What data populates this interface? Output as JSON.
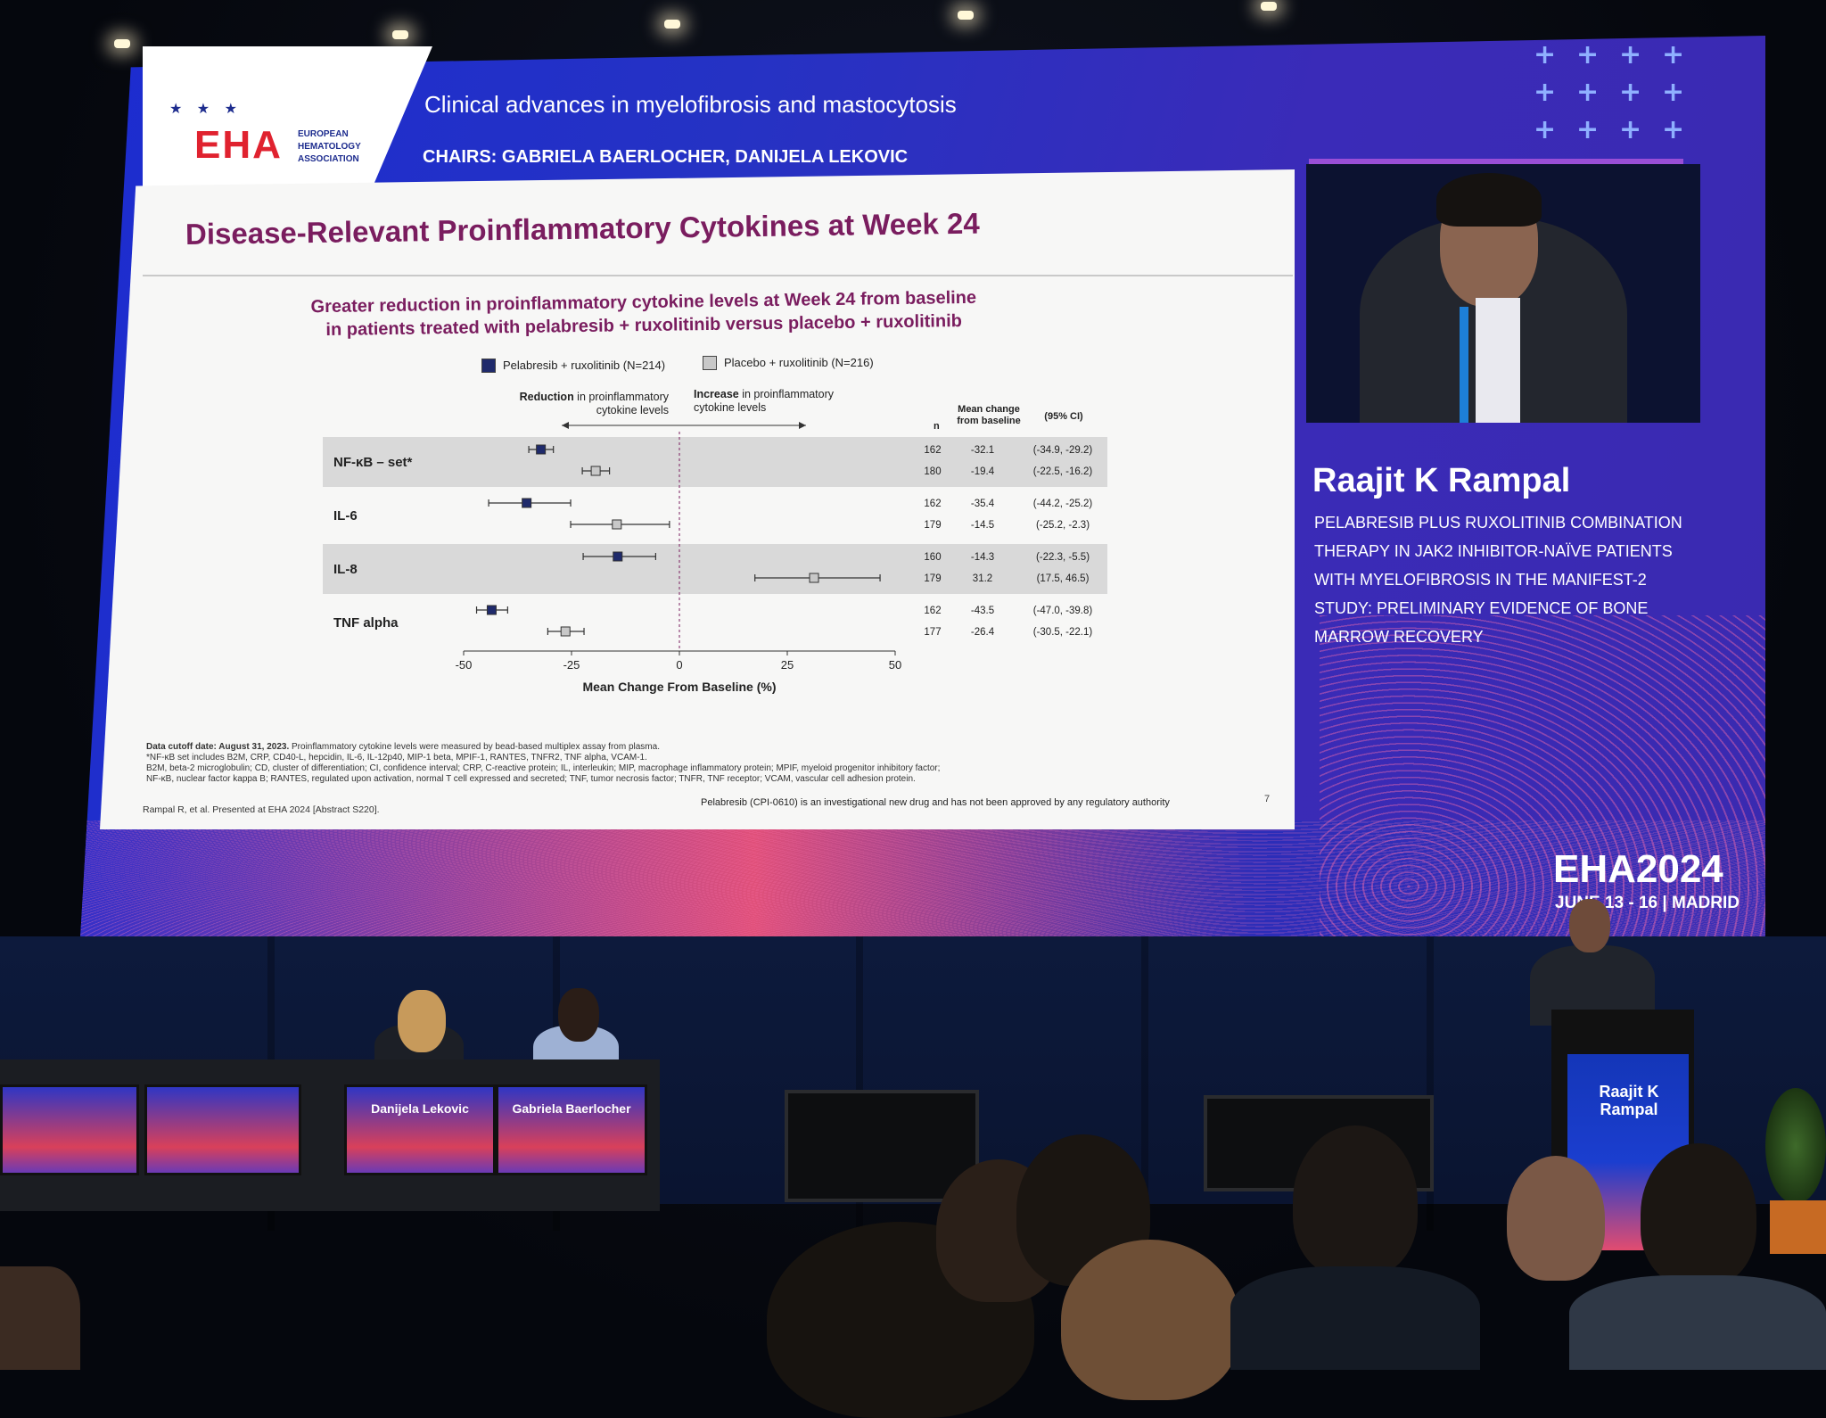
{
  "session": {
    "title": "Clinical advances in myelofibrosis and mastocytosis",
    "chairs": "CHAIRS: GABRIELA BAERLOCHER, DANIJELA LEKOVIC"
  },
  "logo": {
    "word": "EHA",
    "subtitle": "EUROPEAN HEMATOLOGY ASSOCIATION",
    "stars": "★ ★ ★"
  },
  "slide": {
    "title": "Disease-Relevant Proinflammatory Cytokines at Week 24",
    "subtitle_line1": "Greater reduction in proinflammatory cytokine levels at Week 24 from baseline",
    "subtitle_line2": "in patients treated with pelabresib + ruxolitinib versus placebo + ruxolitinib",
    "legend_pela": "Pelabresib + ruxolitinib (N=214)",
    "legend_placebo": "Placebo + ruxolitinib (N=216)",
    "reduction_label_bold": "Reduction",
    "reduction_label_rest": " in proinflammatory cytokine levels",
    "increase_label_bold": "Increase",
    "increase_label_rest": " in proinflammatory cytokine levels",
    "col_n": "n",
    "col_mean": "Mean change from baseline",
    "col_ci": "(95% CI)",
    "footnote_1_bold": "Data cutoff date: August 31, 2023.",
    "footnote_1": " Proinflammatory cytokine levels were measured by bead-based multiplex assay from plasma.",
    "footnote_2": "*NF-κB set includes B2M, CRP, CD40-L, hepcidin, IL-6, IL-12p40, MIP-1 beta, MPIF-1, RANTES, TNFR2, TNF alpha, VCAM-1.",
    "footnote_3": "B2M, beta-2 microglobulin; CD, cluster of differentiation; CI, confidence interval; CRP, C-reactive protein; IL, interleukin; MIP, macrophage inflammatory protein; MPIF, myeloid progenitor inhibitory factor;",
    "footnote_4": "NF-κB, nuclear factor kappa B; RANTES, regulated upon activation, normal T cell expressed and secreted; TNF, tumor necrosis factor; TNFR, TNF receptor; VCAM, vascular cell adhesion protein.",
    "reference": "Rampal R, et al. Presented at EHA 2024 [Abstract S220].",
    "disclaimer": "Pelabresib (CPI-0610) is an investigational new drug and has not been approved by any regulatory authority",
    "page_number": "7"
  },
  "chart_data": {
    "type": "forest",
    "xlabel": "Mean Change From Baseline (%)",
    "xlim": [
      -50,
      50
    ],
    "xticks": [
      -50,
      -25,
      0,
      25,
      50
    ],
    "series": [
      {
        "name": "Pelabresib + ruxolitinib (N=214)",
        "color": "#1f2a6b"
      },
      {
        "name": "Placebo + ruxolitinib (N=216)",
        "color": "#c8c8c8"
      }
    ],
    "groups": [
      {
        "label": "NF-κB – set*",
        "shaded": true,
        "rows": [
          {
            "arm": "Pelabresib + ruxolitinib (N=214)",
            "n": "162",
            "mean": -32.1,
            "mean_text": "-32.1",
            "ci": [
              -34.9,
              -29.2
            ],
            "ci_text": "(-34.9, -29.2)"
          },
          {
            "arm": "Placebo + ruxolitinib (N=216)",
            "n": "180",
            "mean": -19.4,
            "mean_text": "-19.4",
            "ci": [
              -22.5,
              -16.2
            ],
            "ci_text": "(-22.5, -16.2)"
          }
        ]
      },
      {
        "label": "IL-6",
        "shaded": false,
        "rows": [
          {
            "arm": "Pelabresib + ruxolitinib (N=214)",
            "n": "162",
            "mean": -35.4,
            "mean_text": "-35.4",
            "ci": [
              -44.2,
              -25.2
            ],
            "ci_text": "(-44.2, -25.2)"
          },
          {
            "arm": "Placebo + ruxolitinib (N=216)",
            "n": "179",
            "mean": -14.5,
            "mean_text": "-14.5",
            "ci": [
              -25.2,
              -2.3
            ],
            "ci_text": "(-25.2, -2.3)"
          }
        ]
      },
      {
        "label": "IL-8",
        "shaded": true,
        "rows": [
          {
            "arm": "Pelabresib + ruxolitinib (N=214)",
            "n": "160",
            "mean": -14.3,
            "mean_text": "-14.3",
            "ci": [
              -22.3,
              -5.5
            ],
            "ci_text": "(-22.3, -5.5)"
          },
          {
            "arm": "Placebo + ruxolitinib (N=216)",
            "n": "179",
            "mean": 31.2,
            "mean_text": "31.2",
            "ci": [
              17.5,
              46.5
            ],
            "ci_text": "(17.5, 46.5)"
          }
        ]
      },
      {
        "label": "TNF alpha",
        "shaded": false,
        "rows": [
          {
            "arm": "Pelabresib + ruxolitinib (N=214)",
            "n": "162",
            "mean": -43.5,
            "mean_text": "-43.5",
            "ci": [
              -47.0,
              -39.8
            ],
            "ci_text": "(-47.0, -39.8)"
          },
          {
            "arm": "Placebo + ruxolitinib (N=216)",
            "n": "177",
            "mean": -26.4,
            "mean_text": "-26.4",
            "ci": [
              -30.5,
              -22.1
            ],
            "ci_text": "(-30.5, -22.1)"
          }
        ]
      }
    ]
  },
  "speaker": {
    "name": "Raajit K Rampal",
    "talk_title": "PELABRESIB PLUS RUXOLITINIB COMBINATION THERAPY IN JAK2 INHIBITOR-NAÏVE PATIENTS WITH MYELOFIBROSIS IN THE MANIFEST-2 STUDY: PRELIMINARY EVIDENCE OF BONE MARROW RECOVERY",
    "podium_name": "Raajit K Rampal"
  },
  "event": {
    "name": "EHA2024",
    "dates": "JUNE 13 - 16 | MADRID"
  },
  "chairs_desk": {
    "left_name": "Danijela Lekovic",
    "right_name": "Gabriela Baerlocher"
  },
  "colors": {
    "title_purple": "#7a1d5f",
    "pelabresib_marker": "#1f2a6b",
    "placebo_marker": "#c8c8c8",
    "eha_red": "#e0222f",
    "screen_blue": "#2532c4"
  }
}
